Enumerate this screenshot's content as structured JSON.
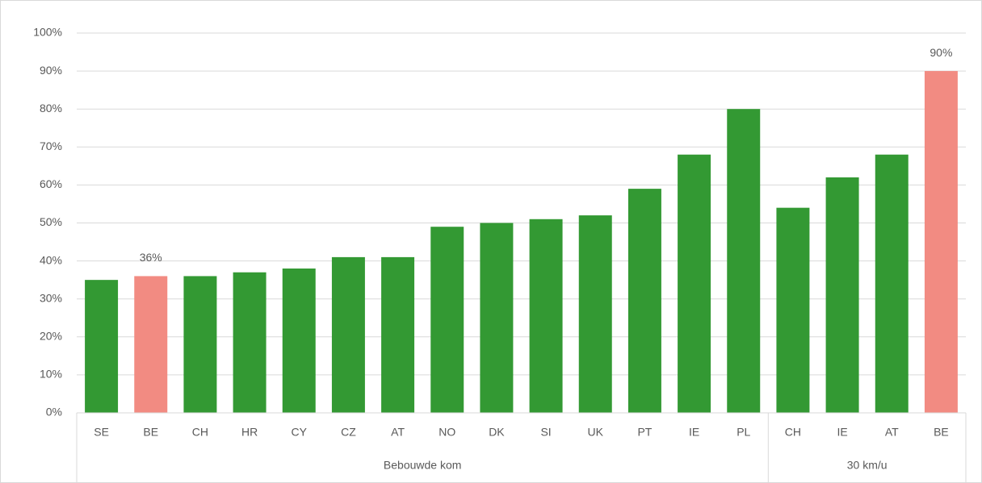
{
  "chart_data": {
    "type": "bar",
    "categories": [
      "SE",
      "BE",
      "CH",
      "HR",
      "CY",
      "CZ",
      "AT",
      "NO",
      "DK",
      "SI",
      "UK",
      "PT",
      "IE",
      "PL",
      "CH",
      "IE",
      "AT",
      "BE"
    ],
    "values": [
      35,
      36,
      36,
      37,
      38,
      41,
      41,
      49,
      50,
      51,
      52,
      59,
      68,
      80,
      54,
      62,
      68,
      90
    ],
    "value_labels": [
      null,
      "36%",
      null,
      null,
      null,
      null,
      null,
      null,
      null,
      null,
      null,
      null,
      null,
      null,
      null,
      null,
      null,
      "90%"
    ],
    "colors": [
      "#339933",
      "#f28b82",
      "#339933",
      "#339933",
      "#339933",
      "#339933",
      "#339933",
      "#339933",
      "#339933",
      "#339933",
      "#339933",
      "#339933",
      "#339933",
      "#339933",
      "#339933",
      "#339933",
      "#339933",
      "#f28b82"
    ],
    "groups": [
      {
        "label": "Bebouwde kom",
        "count": 14
      },
      {
        "label": "30 km/u",
        "count": 4
      }
    ],
    "ylim": [
      0,
      100
    ],
    "yticks": [
      {
        "value": 0,
        "label": "0%"
      },
      {
        "value": 10,
        "label": "10%"
      },
      {
        "value": 20,
        "label": "20%"
      },
      {
        "value": 30,
        "label": "30%"
      },
      {
        "value": 40,
        "label": "40%"
      },
      {
        "value": 50,
        "label": "50%"
      },
      {
        "value": 60,
        "label": "60%"
      },
      {
        "value": 70,
        "label": "70%"
      },
      {
        "value": 80,
        "label": "80%"
      },
      {
        "value": 90,
        "label": "90%"
      },
      {
        "value": 100,
        "label": "100%"
      }
    ],
    "grid": true
  }
}
